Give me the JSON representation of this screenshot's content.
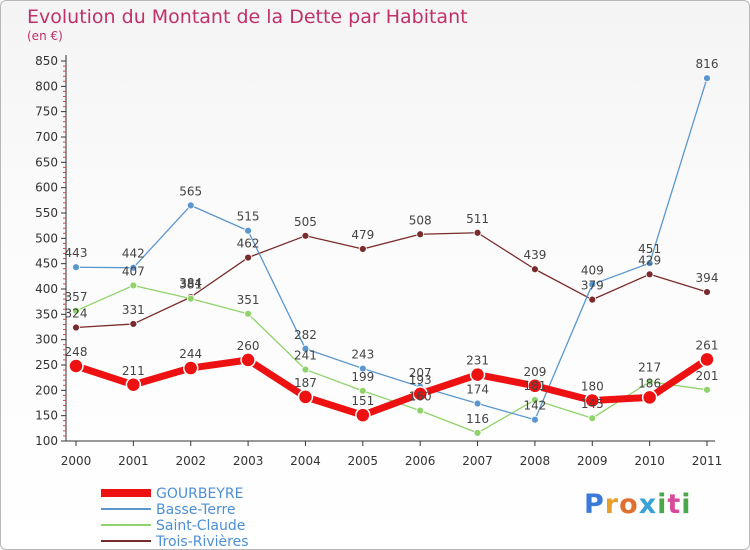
{
  "title": "Evolution du Montant de la Dette par Habitant",
  "subtitle": "(en €)",
  "logo": {
    "text": [
      "P",
      "r",
      "o",
      "x",
      "i",
      "t",
      "i"
    ],
    "colors": [
      "#3b7ad6",
      "#e8a02a",
      "#e07030",
      "#3aa0d8",
      "#4aa84a",
      "#d84a9a",
      "#4aa84a"
    ]
  },
  "chart_data": {
    "type": "line",
    "title": "Evolution du Montant de la Dette par Habitant",
    "subtitle": "(en €)",
    "x": [
      2000,
      2001,
      2002,
      2003,
      2004,
      2005,
      2006,
      2007,
      2008,
      2009,
      2010,
      2011
    ],
    "ylim": [
      100,
      850
    ],
    "yticks": [
      100,
      150,
      200,
      250,
      300,
      350,
      400,
      450,
      500,
      550,
      600,
      650,
      700,
      750,
      800,
      850
    ],
    "grid": false,
    "legend_position": "bottom-left",
    "series": [
      {
        "name": "Trois-Rivières",
        "color": "#7a2b2b",
        "width": 1.3,
        "marker": 3.5,
        "values": [
          324,
          331,
          384,
          462,
          505,
          479,
          508,
          511,
          439,
          379,
          429,
          394
        ]
      },
      {
        "name": "Saint-Claude",
        "color": "#8fd36a",
        "width": 1.3,
        "marker": 3.5,
        "values": [
          357,
          407,
          381,
          351,
          241,
          199,
          160,
          116,
          181,
          145,
          217,
          201
        ]
      },
      {
        "name": "Basse-Terre",
        "color": "#5b97cf",
        "width": 1.3,
        "marker": 3.5,
        "values": [
          443,
          442,
          565,
          515,
          282,
          243,
          207,
          174,
          142,
          409,
          451,
          816
        ]
      },
      {
        "name": "GOURBEYRE",
        "color": "#ee1111",
        "width": 7,
        "marker": 7,
        "values": [
          248,
          211,
          244,
          260,
          187,
          151,
          193,
          231,
          209,
          180,
          186,
          261
        ]
      }
    ]
  }
}
